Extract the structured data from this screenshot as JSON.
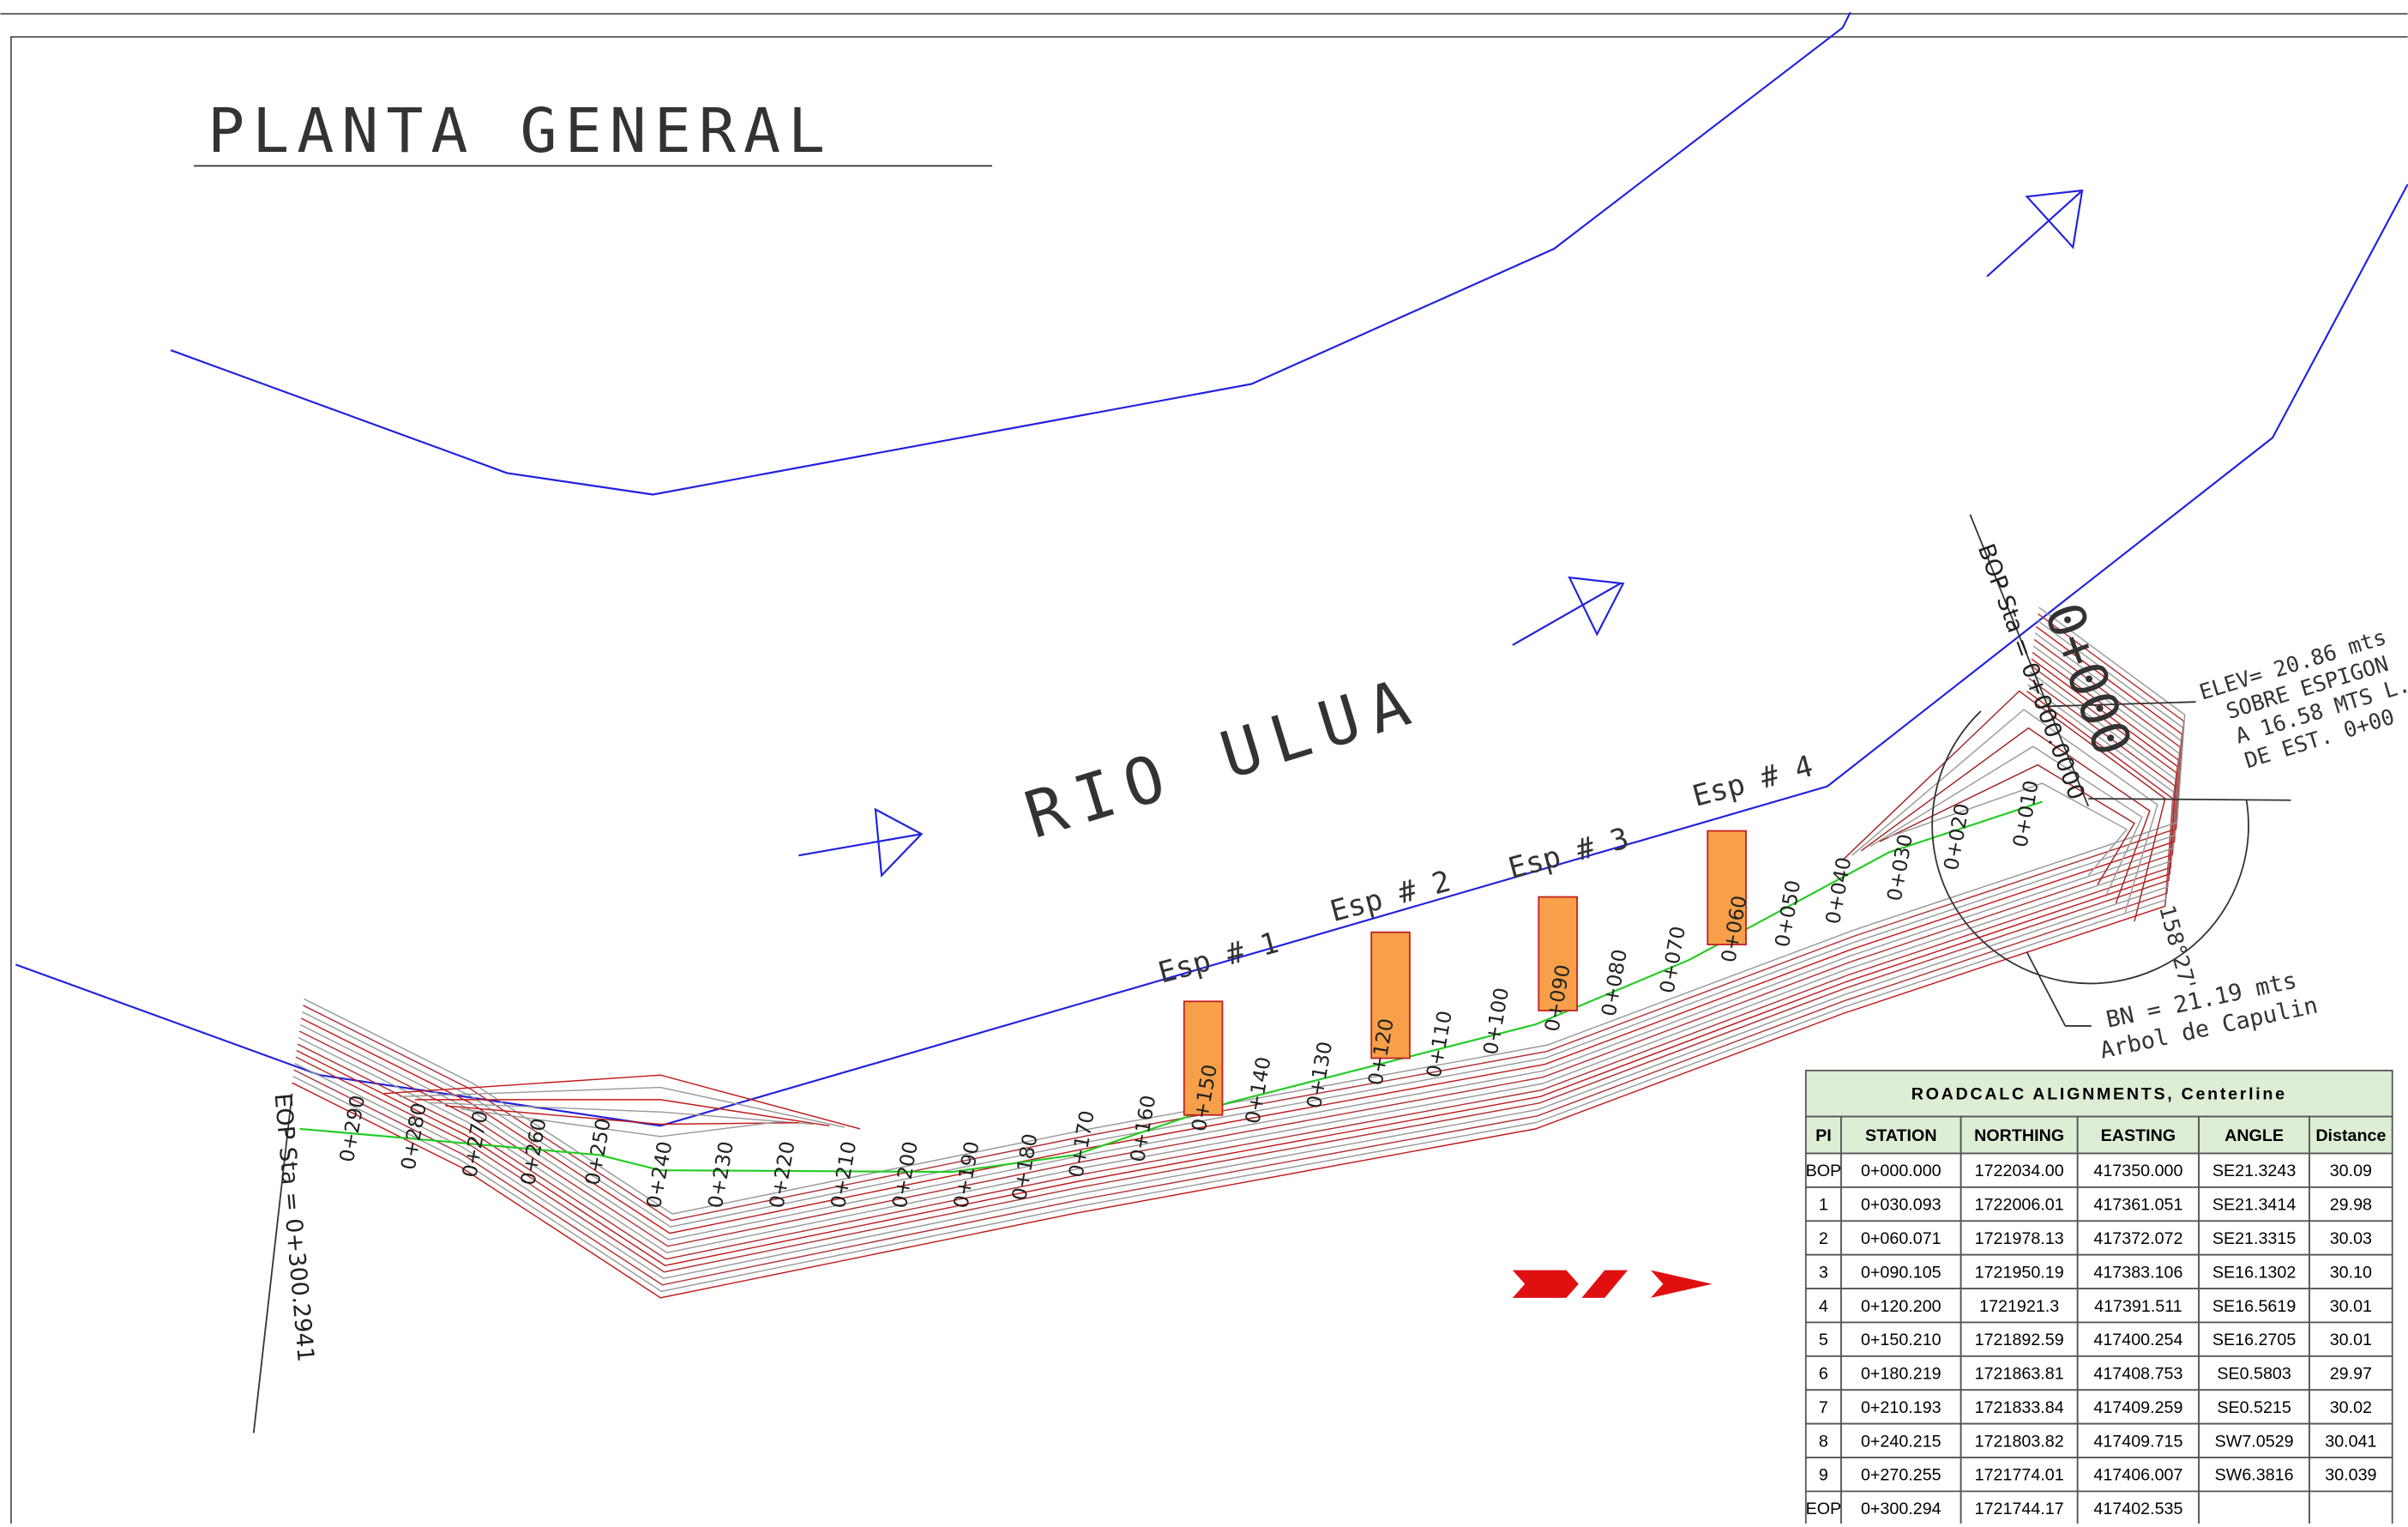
{
  "title": "PLANTA GENERAL",
  "river": "RIO ULUA",
  "groynes": [
    "Esp # 1",
    "Esp # 2",
    "Esp # 3",
    "Esp # 4"
  ],
  "stations": [
    "0+290",
    "0+280",
    "0+270",
    "0+260",
    "0+250",
    "0+240",
    "0+230",
    "0+220",
    "0+210",
    "0+200",
    "0+190",
    "0+180",
    "0+170",
    "0+160",
    "0+150",
    "0+140",
    "0+130",
    "0+120",
    "0+110",
    "0+100",
    "0+090",
    "0+080",
    "0+070",
    "0+060",
    "0+050",
    "0+040",
    "0+030",
    "0+020",
    "0+010"
  ],
  "bop": {
    "label": "BOP Sta = 0+000.0000",
    "big": "0+000"
  },
  "elevation_note": [
    "ELEV= 20.86 mts",
    "SOBRE ESPIGON",
    "A 16.58 MTS L.",
    "DE EST. 0+00"
  ],
  "angle": "158°27'",
  "benchmark": [
    "BN = 21.19 mts",
    "Arbol de Capulin"
  ],
  "eop": "EOP Sta = 0+300.2941",
  "table": {
    "title": "ROADCALC ALIGNMENTS, Centerline",
    "headers": [
      "PI",
      "STATION",
      "NORTHING",
      "EASTING",
      "ANGLE",
      "Distance"
    ],
    "rows": [
      [
        "BOP",
        "0+000.000",
        "1722034.00",
        "417350.000",
        "SE21.3243",
        "30.09"
      ],
      [
        "1",
        "0+030.093",
        "1722006.01",
        "417361.051",
        "SE21.3414",
        "29.98"
      ],
      [
        "2",
        "0+060.071",
        "1721978.13",
        "417372.072",
        "SE21.3315",
        "30.03"
      ],
      [
        "3",
        "0+090.105",
        "1721950.19",
        "417383.106",
        "SE16.1302",
        "30.10"
      ],
      [
        "4",
        "0+120.200",
        "1721921.3",
        "417391.511",
        "SE16.5619",
        "30.01"
      ],
      [
        "5",
        "0+150.210",
        "1721892.59",
        "417400.254",
        "SE16.2705",
        "30.01"
      ],
      [
        "6",
        "0+180.219",
        "1721863.81",
        "417408.753",
        "SE0.5803",
        "29.97"
      ],
      [
        "7",
        "0+210.193",
        "1721833.84",
        "417409.259",
        "SE0.5215",
        "30.02"
      ],
      [
        "8",
        "0+240.215",
        "1721803.82",
        "417409.715",
        "SW7.0529",
        "30.041"
      ],
      [
        "9",
        "0+270.255",
        "1721774.01",
        "417406.007",
        "SW6.3816",
        "30.039"
      ],
      [
        "EOP",
        "0+300.294",
        "1721744.17",
        "417402.535"
      ]
    ]
  }
}
